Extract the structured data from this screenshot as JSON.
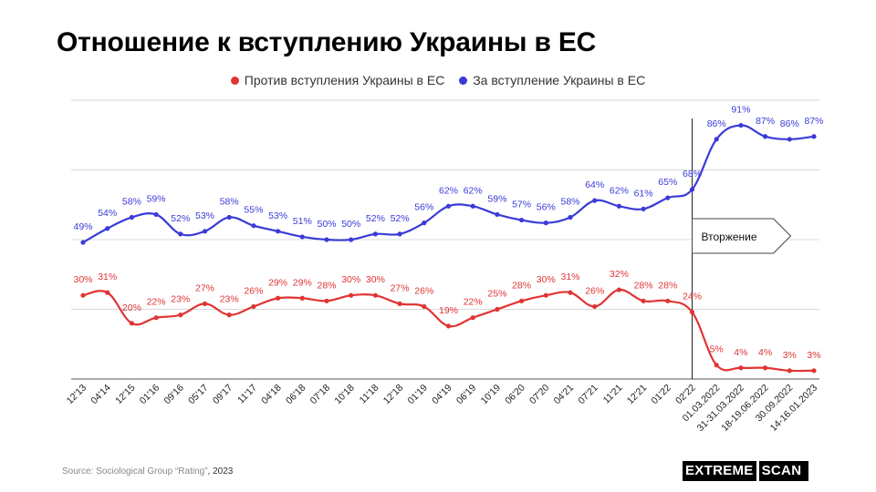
{
  "title": "Отношение к вступлению Украины в ЕС",
  "source": {
    "prefix": "Source: Sociological Group “Rating”",
    "suffix": ", 2023"
  },
  "brand": {
    "left": "EXTREME",
    "right": "SCAN"
  },
  "chart_data": {
    "type": "line",
    "title": "Отношение к вступлению Украины в ЕС",
    "categories": [
      "12'13",
      "04'14",
      "12'15",
      "01'16",
      "09'16",
      "05'17",
      "09'17",
      "11'17",
      "04'18",
      "06'18",
      "07'18",
      "10'18",
      "11'18",
      "12'18",
      "01'19",
      "04'19",
      "06'19",
      "10'19",
      "06'20",
      "07'20",
      "04'21",
      "07'21",
      "11'21",
      "12'21",
      "01'22",
      "02'22",
      "01.03.2022",
      "31-31.03.2022",
      "18-19.06.2022",
      "30.09.2022",
      "14-16.01.2023"
    ],
    "series": [
      {
        "name": "Против вступления Украины в ЕС",
        "color": "#e03434",
        "values": [
          30,
          31,
          20,
          22,
          23,
          27,
          23,
          26,
          29,
          29,
          28,
          30,
          30,
          27,
          26,
          19,
          22,
          25,
          28,
          30,
          31,
          26,
          32,
          28,
          28,
          24,
          5,
          4,
          4,
          3,
          3
        ]
      },
      {
        "name": "За вступление Украины в ЕС",
        "color": "#3a3ad8",
        "values": [
          49,
          54,
          58,
          59,
          52,
          53,
          58,
          55,
          53,
          51,
          50,
          50,
          52,
          52,
          56,
          62,
          62,
          59,
          57,
          56,
          58,
          64,
          62,
          61,
          65,
          68,
          86,
          91,
          87,
          86,
          87
        ]
      }
    ],
    "ylim": [
      0,
      100
    ],
    "grid": true,
    "legend": "top-center",
    "annotation": {
      "label": "Вторжение",
      "at_category": "02'22"
    }
  }
}
